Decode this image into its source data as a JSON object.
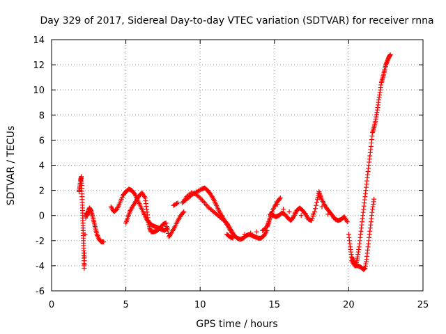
{
  "chart_data": {
    "type": "scatter",
    "title": "Day 329 of 2017, Sidereal Day-to-day VTEC variation (SDTVAR) for receiver rnna",
    "xlabel": "GPS time / hours",
    "ylabel": "SDTVAR / TECUs",
    "xlim": [
      0,
      25
    ],
    "ylim": [
      -6,
      14
    ],
    "xticks": [
      0,
      5,
      10,
      15,
      20,
      25
    ],
    "yticks": [
      -6,
      -4,
      -2,
      0,
      2,
      4,
      6,
      8,
      10,
      12,
      14
    ],
    "grid": true,
    "marker": "+",
    "color": "#ff0000",
    "series": [
      {
        "name": "SDTVAR",
        "points": [
          [
            1.85,
            1.9
          ],
          [
            1.9,
            2.3
          ],
          [
            1.95,
            2.8
          ],
          [
            2.0,
            3.1
          ],
          [
            2.02,
            2.4
          ],
          [
            2.05,
            1.5
          ],
          [
            2.08,
            0.6
          ],
          [
            2.1,
            -0.2
          ],
          [
            2.12,
            -1.0
          ],
          [
            2.14,
            -1.8
          ],
          [
            2.16,
            -2.6
          ],
          [
            2.18,
            -3.4
          ],
          [
            2.2,
            -4.2
          ],
          [
            2.22,
            -3.0
          ],
          [
            2.25,
            -1.5
          ],
          [
            2.3,
            -0.2
          ],
          [
            2.35,
            0.2
          ],
          [
            2.4,
            0.0
          ],
          [
            2.45,
            0.3
          ],
          [
            2.55,
            0.6
          ],
          [
            2.65,
            0.4
          ],
          [
            2.75,
            0.0
          ],
          [
            2.85,
            -0.5
          ],
          [
            2.95,
            -1.0
          ],
          [
            3.05,
            -1.5
          ],
          [
            3.2,
            -1.9
          ],
          [
            3.35,
            -2.1
          ],
          [
            3.5,
            -2.1
          ],
          [
            4.0,
            0.7
          ],
          [
            4.2,
            0.3
          ],
          [
            4.4,
            0.5
          ],
          [
            4.6,
            1.0
          ],
          [
            4.8,
            1.6
          ],
          [
            5.0,
            1.9
          ],
          [
            5.2,
            2.1
          ],
          [
            5.4,
            2.0
          ],
          [
            5.6,
            1.7
          ],
          [
            5.8,
            1.2
          ],
          [
            6.0,
            0.7
          ],
          [
            6.2,
            0.2
          ],
          [
            6.4,
            -0.3
          ],
          [
            6.6,
            -0.6
          ],
          [
            6.8,
            -0.8
          ],
          [
            7.0,
            -0.9
          ],
          [
            7.2,
            -1.0
          ],
          [
            7.4,
            -1.1
          ],
          [
            7.6,
            -1.2
          ],
          [
            7.8,
            -1.0
          ],
          [
            5.0,
            -0.6
          ],
          [
            5.15,
            -0.1
          ],
          [
            5.3,
            0.4
          ],
          [
            5.5,
            0.8
          ],
          [
            5.7,
            1.2
          ],
          [
            5.9,
            1.6
          ],
          [
            6.1,
            1.8
          ],
          [
            6.3,
            1.4
          ],
          [
            6.4,
            0.5
          ],
          [
            6.5,
            -0.4
          ],
          [
            6.6,
            -1.0
          ],
          [
            6.7,
            -1.3
          ],
          [
            6.9,
            -1.3
          ],
          [
            7.1,
            -1.2
          ],
          [
            7.3,
            -1.0
          ],
          [
            7.5,
            -0.7
          ],
          [
            7.7,
            -0.6
          ],
          [
            7.9,
            -1.7
          ],
          [
            8.1,
            -1.3
          ],
          [
            8.3,
            -0.9
          ],
          [
            8.5,
            -0.4
          ],
          [
            8.7,
            0.0
          ],
          [
            8.9,
            0.3
          ],
          [
            8.2,
            0.8
          ],
          [
            8.5,
            1.0
          ],
          [
            8.9,
            1.1
          ],
          [
            9.2,
            1.4
          ],
          [
            9.5,
            1.7
          ],
          [
            9.8,
            1.9
          ],
          [
            10.1,
            2.1
          ],
          [
            10.3,
            2.2
          ],
          [
            10.5,
            2.0
          ],
          [
            10.7,
            1.7
          ],
          [
            10.9,
            1.3
          ],
          [
            11.1,
            0.8
          ],
          [
            11.3,
            0.3
          ],
          [
            11.5,
            -0.1
          ],
          [
            11.7,
            -0.5
          ],
          [
            11.9,
            -0.9
          ],
          [
            12.1,
            -1.3
          ],
          [
            12.3,
            -1.6
          ],
          [
            12.5,
            -1.8
          ],
          [
            12.7,
            -1.9
          ],
          [
            12.9,
            -1.8
          ],
          [
            13.1,
            -1.6
          ],
          [
            13.3,
            -1.5
          ],
          [
            13.5,
            -1.6
          ],
          [
            13.7,
            -1.7
          ],
          [
            13.9,
            -1.8
          ],
          [
            14.1,
            -1.8
          ],
          [
            14.3,
            -1.6
          ],
          [
            14.5,
            -1.2
          ],
          [
            8.8,
            1.0
          ],
          [
            9.1,
            1.5
          ],
          [
            9.4,
            1.8
          ],
          [
            9.7,
            1.7
          ],
          [
            10.0,
            1.4
          ],
          [
            10.3,
            1.0
          ],
          [
            10.6,
            0.6
          ],
          [
            10.9,
            0.3
          ],
          [
            11.2,
            0.0
          ],
          [
            11.5,
            -0.3
          ],
          [
            11.8,
            -0.6
          ],
          [
            12.0,
            -1.0
          ],
          [
            12.2,
            -1.4
          ],
          [
            11.8,
            -1.5
          ],
          [
            12.0,
            -1.7
          ],
          [
            12.2,
            -1.8
          ],
          [
            13.0,
            -1.5
          ],
          [
            13.4,
            -1.4
          ],
          [
            13.8,
            -1.3
          ],
          [
            14.2,
            -1.2
          ],
          [
            14.5,
            -0.9
          ],
          [
            14.6,
            -0.6
          ],
          [
            14.7,
            -0.2
          ],
          [
            14.8,
            0.2
          ],
          [
            15.0,
            0.7
          ],
          [
            15.2,
            1.1
          ],
          [
            15.4,
            1.4
          ],
          [
            14.7,
            0.1
          ],
          [
            14.9,
            0.0
          ],
          [
            15.1,
            -0.1
          ],
          [
            15.3,
            0.0
          ],
          [
            15.5,
            0.2
          ],
          [
            15.7,
            0.1
          ],
          [
            15.9,
            -0.2
          ],
          [
            16.1,
            -0.4
          ],
          [
            16.3,
            -0.1
          ],
          [
            16.5,
            0.4
          ],
          [
            16.7,
            0.6
          ],
          [
            16.9,
            0.4
          ],
          [
            17.1,
            0.1
          ],
          [
            17.3,
            -0.3
          ],
          [
            17.5,
            -0.4
          ],
          [
            17.7,
            0.3
          ],
          [
            17.9,
            1.3
          ],
          [
            18.0,
            1.9
          ],
          [
            18.1,
            1.5
          ],
          [
            18.3,
            1.0
          ],
          [
            18.5,
            0.6
          ],
          [
            18.7,
            0.3
          ],
          [
            18.9,
            0.0
          ],
          [
            19.1,
            -0.3
          ],
          [
            19.3,
            -0.4
          ],
          [
            19.5,
            -0.3
          ],
          [
            19.7,
            -0.1
          ],
          [
            19.9,
            -0.5
          ],
          [
            15.2,
            0.9
          ],
          [
            15.6,
            0.5
          ],
          [
            16.0,
            0.3
          ],
          [
            16.4,
            0.2
          ],
          [
            16.8,
            0.0
          ],
          [
            17.2,
            -0.2
          ],
          [
            17.6,
            0.1
          ],
          [
            18.2,
            0.7
          ],
          [
            18.6,
            0.1
          ],
          [
            19.0,
            -0.2
          ],
          [
            20.0,
            -1.5
          ],
          [
            20.1,
            -2.5
          ],
          [
            20.2,
            -3.3
          ],
          [
            20.3,
            -3.6
          ],
          [
            20.4,
            -3.8
          ],
          [
            20.5,
            -3.9
          ],
          [
            20.6,
            -3.3
          ],
          [
            20.7,
            -2.5
          ],
          [
            20.8,
            -1.5
          ],
          [
            20.9,
            -0.5
          ],
          [
            21.0,
            0.5
          ],
          [
            21.1,
            1.5
          ],
          [
            21.2,
            2.5
          ],
          [
            21.3,
            3.5
          ],
          [
            21.4,
            4.5
          ],
          [
            21.5,
            5.5
          ],
          [
            21.6,
            6.6
          ],
          [
            21.7,
            7.0
          ],
          [
            21.8,
            7.5
          ],
          [
            21.9,
            8.2
          ],
          [
            22.0,
            9.0
          ],
          [
            22.1,
            9.8
          ],
          [
            22.2,
            10.6
          ],
          [
            22.3,
            11.0
          ],
          [
            22.4,
            11.5
          ],
          [
            22.5,
            12.0
          ],
          [
            22.6,
            12.3
          ],
          [
            22.7,
            12.6
          ],
          [
            22.8,
            12.8
          ],
          [
            20.2,
            -3.6
          ],
          [
            20.4,
            -4.0
          ],
          [
            20.6,
            -4.0
          ],
          [
            20.8,
            -4.1
          ],
          [
            21.0,
            -4.3
          ],
          [
            21.1,
            -4.2
          ],
          [
            21.2,
            -3.5
          ],
          [
            21.3,
            -2.5
          ],
          [
            21.4,
            -1.5
          ],
          [
            21.5,
            -0.5
          ],
          [
            21.6,
            0.5
          ],
          [
            21.7,
            1.3
          ]
        ]
      }
    ]
  }
}
